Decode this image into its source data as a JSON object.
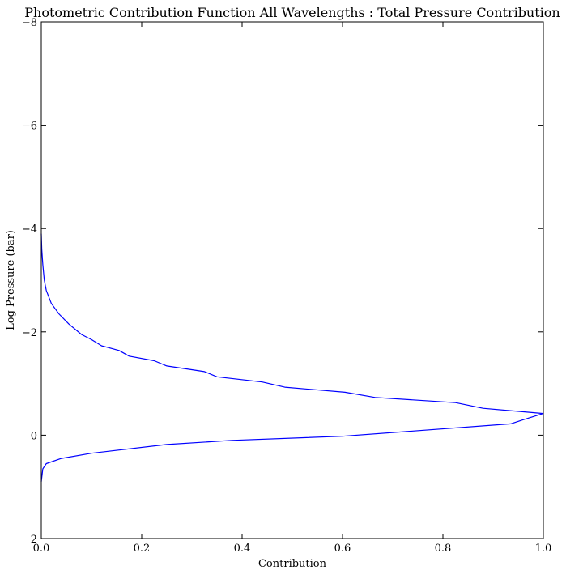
{
  "chart_data": {
    "type": "line",
    "title": "Photometric Contribution Function All Wavelengths : Total Pressure Contribution",
    "xlabel": "Contribution",
    "ylabel": "Log Pressure (bar)",
    "xlim": [
      0.0,
      1.0
    ],
    "ylim": [
      2,
      -8
    ],
    "y_inverted": true,
    "xticks": [
      0.0,
      0.2,
      0.4,
      0.6,
      0.8,
      1.0
    ],
    "xtick_labels": [
      "0.0",
      "0.2",
      "0.4",
      "0.6",
      "0.8",
      "1.0"
    ],
    "yticks": [
      -8,
      -6,
      -4,
      -2,
      0,
      2
    ],
    "ytick_labels": [
      "−8",
      "−6",
      "−4",
      "−2",
      "0",
      "2"
    ],
    "grid": false,
    "line_color": "#0000ff",
    "series": [
      {
        "x": [
          0.0,
          0.001,
          0.003,
          0.006,
          0.01,
          0.02,
          0.035,
          0.055,
          0.08,
          0.1,
          0.12,
          0.155,
          0.175,
          0.225,
          0.25,
          0.325,
          0.35,
          0.44,
          0.485,
          0.605,
          0.665,
          0.825,
          0.88,
          1.0,
          0.96,
          0.935,
          0.6,
          0.38,
          0.25,
          0.1,
          0.04,
          0.01,
          0.003,
          0.0
        ],
        "y": [
          -3.9,
          -3.6,
          -3.3,
          -3.0,
          -2.8,
          -2.55,
          -2.35,
          -2.15,
          -1.95,
          -1.85,
          -1.73,
          -1.64,
          -1.53,
          -1.44,
          -1.34,
          -1.23,
          -1.13,
          -1.03,
          -0.93,
          -0.83,
          -0.73,
          -0.63,
          -0.52,
          -0.42,
          -0.3,
          -0.22,
          0.02,
          0.1,
          0.18,
          0.35,
          0.45,
          0.55,
          0.65,
          0.9
        ]
      }
    ]
  }
}
